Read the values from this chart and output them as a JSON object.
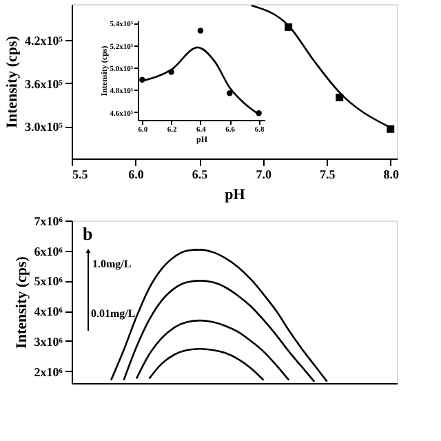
{
  "chart_data": [
    {
      "type": "scatter",
      "xlabel": "pH",
      "ylabel": "Intensity (cps)",
      "xlim": [
        5.5,
        8.05
      ],
      "ylim": [
        255000,
        470000
      ],
      "xticks": [
        5.5,
        {
          "value": 6,
          "label": "6.0"
        },
        6.5,
        {
          "value": 7,
          "label": "7.0"
        },
        7.5,
        {
          "value": 8,
          "label": "8.0"
        }
      ],
      "yticks": [
        {
          "value": 300000,
          "label": "3.0x10⁵"
        },
        {
          "value": 360000,
          "label": "3.6x10⁵"
        },
        {
          "value": 420000,
          "label": "4.2x10⁵"
        }
      ],
      "grid": false,
      "series": [
        {
          "type": "scatter",
          "marker": "square",
          "color": "#000000",
          "x": [
            7.2,
            7.6,
            8.0
          ],
          "values": [
            438000,
            340000,
            296000
          ]
        },
        {
          "type": "line",
          "marker": "none",
          "line_style": "solid",
          "color": "#000000",
          "x": [
            6.91,
            7.2,
            7.4,
            7.6,
            8.0
          ],
          "values": [
            468000,
            440000,
            391000,
            347000,
            298000
          ]
        }
      ]
    },
    {
      "type": "scatter",
      "xlabel": "pH",
      "ylabel": "Intensity (cps)",
      "xlim": [
        5.97,
        6.84
      ],
      "ylim": [
        453000,
        542000
      ],
      "xticks": [
        {
          "value": 6,
          "label": "6.0"
        },
        6.2,
        6.4,
        6.6,
        6.8
      ],
      "yticks": [
        {
          "value": 460000,
          "label": "4.6x10⁵"
        },
        {
          "value": 480000,
          "label": "4.8x10⁵"
        },
        {
          "value": 500000,
          "label": "5.0x10⁵"
        },
        {
          "value": 520000,
          "label": "5.2x10⁵"
        },
        {
          "value": 540000,
          "label": "5.4x10⁵"
        }
      ],
      "grid": false,
      "series": [
        {
          "type": "scatter",
          "marker": "circle",
          "color": "#000000",
          "x": [
            6.0,
            6.2,
            6.4,
            6.6,
            6.8
          ],
          "values": [
            489000,
            496000,
            533000,
            477000,
            459000
          ]
        },
        {
          "type": "line",
          "marker": "none",
          "line_style": "solid",
          "color": "#000000",
          "x": [
            6.0,
            6.2,
            6.38,
            6.5,
            6.6,
            6.7,
            6.8
          ],
          "values": [
            488000,
            498000,
            518000,
            505000,
            482000,
            468000,
            458000
          ]
        }
      ]
    },
    {
      "type": "line",
      "ylabel": "Intensity (cps)",
      "ylim": [
        1600000,
        7000000
      ],
      "yticks": [
        {
          "value": 2000000,
          "label": "2x10⁶"
        },
        {
          "value": 3000000,
          "label": "3x10⁶"
        },
        {
          "value": 4000000,
          "label": "4x10⁶"
        },
        {
          "value": 5000000,
          "label": "5x10⁶"
        },
        {
          "value": 6000000,
          "label": "6x10⁶"
        },
        {
          "value": 7000000,
          "label": "7x10⁶"
        }
      ],
      "tick_labels": "y",
      "grid": false,
      "line_style": "solid",
      "categories": [
        null,
        null,
        null,
        null,
        null,
        null,
        null,
        null,
        null,
        null,
        null,
        null,
        null,
        null,
        null,
        null,
        null,
        null
      ],
      "annotations": [
        "b",
        "1.0mg/L",
        "0.01mg/L"
      ],
      "series": [
        {
          "color": "#000000",
          "values": [
            1700000,
            2700000,
            3800000,
            4750000,
            5400000,
            5800000,
            6000000,
            6030000,
            5950000,
            5750000,
            5450000,
            5050000,
            4550000,
            4000000,
            3350000,
            2750000,
            2200000,
            1650000
          ]
        },
        {
          "color": "#000000",
          "values": [
            null,
            1700000,
            2800000,
            3700000,
            4350000,
            4750000,
            4950000,
            5000000,
            4950000,
            4780000,
            4500000,
            4150000,
            3700000,
            3200000,
            2650000,
            2150000,
            1650000,
            null
          ]
        },
        {
          "color": "#000000",
          "values": [
            null,
            null,
            1750000,
            2550000,
            3100000,
            3450000,
            3630000,
            3680000,
            3630000,
            3500000,
            3300000,
            3000000,
            2650000,
            2200000,
            1700000,
            null,
            null,
            null
          ]
        },
        {
          "color": "#000000",
          "values": [
            null,
            null,
            null,
            1750000,
            2250000,
            2550000,
            2700000,
            2740000,
            2700000,
            2600000,
            2400000,
            2100000,
            1700000,
            null,
            null,
            null,
            null,
            null
          ]
        }
      ]
    }
  ]
}
